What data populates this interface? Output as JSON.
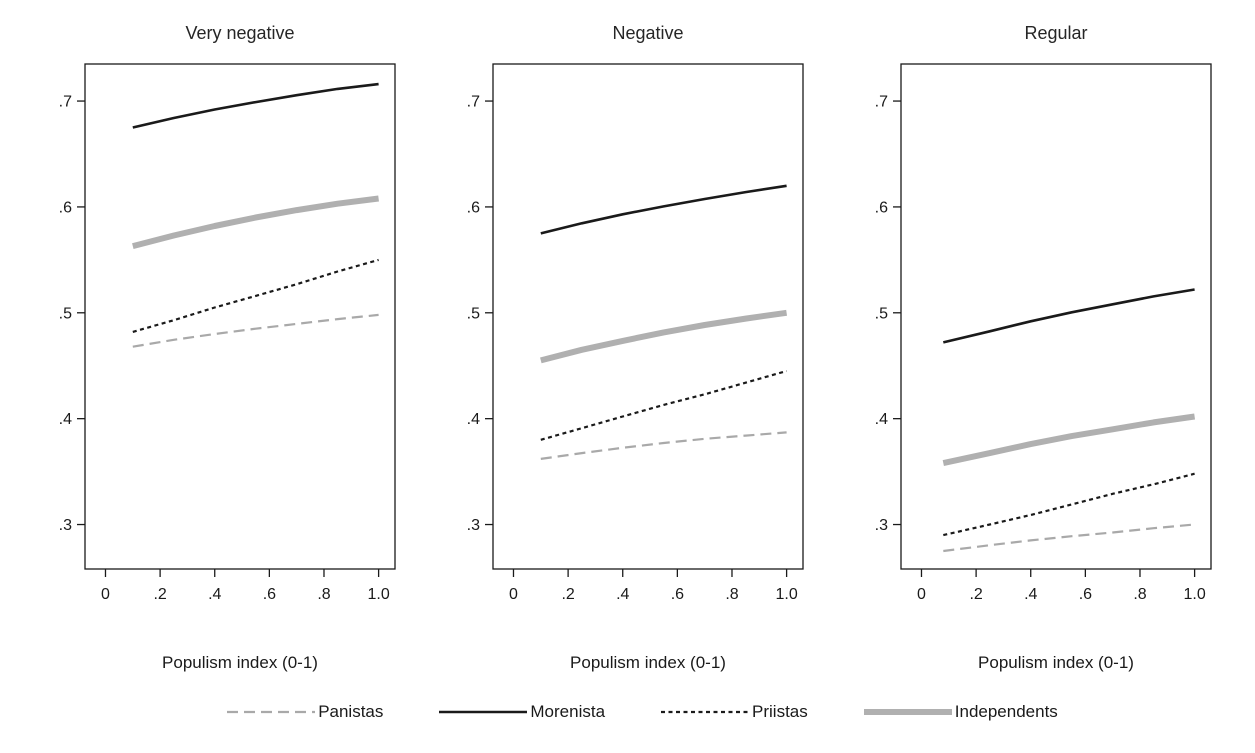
{
  "series_styles": {
    "Panistas": {
      "color": "#a9a9a9",
      "width": 2.2,
      "dash": "11,6"
    },
    "Morenista": {
      "color": "#1a1a1a",
      "width": 2.6,
      "dash": ""
    },
    "Priistas": {
      "color": "#1a1a1a",
      "width": 2.2,
      "dash": "4,3.5"
    },
    "Independents": {
      "color": "#b0b0b0",
      "width": 6,
      "dash": ""
    }
  },
  "legend": {
    "items": [
      {
        "label": "Panistas"
      },
      {
        "label": "Morenista"
      },
      {
        "label": "Priistas"
      },
      {
        "label": "Independents"
      }
    ]
  },
  "chart_data": [
    {
      "type": "line",
      "title": "Very negative",
      "xlabel": "Populism index (0-1)",
      "x_ticks": [
        "0",
        ".2",
        ".4",
        ".6",
        ".8",
        "1.0"
      ],
      "y_ticks": [
        ".3",
        ".4",
        ".5",
        ".6",
        ".7"
      ],
      "xlim": [
        -0.075,
        1.06
      ],
      "ylim": [
        0.258,
        0.735
      ],
      "grid": false,
      "series": [
        {
          "name": "Panistas",
          "x": [
            0.1,
            0.25,
            0.4,
            0.55,
            0.7,
            0.85,
            1.0
          ],
          "y": [
            0.468,
            0.4745,
            0.48,
            0.485,
            0.4895,
            0.494,
            0.498
          ]
        },
        {
          "name": "Morenista",
          "x": [
            0.1,
            0.25,
            0.4,
            0.55,
            0.7,
            0.85,
            1.0
          ],
          "y": [
            0.675,
            0.684,
            0.692,
            0.699,
            0.7055,
            0.7115,
            0.716
          ]
        },
        {
          "name": "Priistas",
          "x": [
            0.1,
            0.25,
            0.4,
            0.55,
            0.7,
            0.85,
            1.0
          ],
          "y": [
            0.482,
            0.493,
            0.505,
            0.516,
            0.527,
            0.539,
            0.55
          ]
        },
        {
          "name": "Independents",
          "x": [
            0.1,
            0.25,
            0.4,
            0.55,
            0.7,
            0.85,
            1.0
          ],
          "y": [
            0.563,
            0.573,
            0.582,
            0.59,
            0.597,
            0.603,
            0.608
          ]
        }
      ]
    },
    {
      "type": "line",
      "title": "Negative",
      "xlabel": "Populism index (0-1)",
      "x_ticks": [
        "0",
        ".2",
        ".4",
        ".6",
        ".8",
        "1.0"
      ],
      "y_ticks": [
        ".3",
        ".4",
        ".5",
        ".6",
        ".7"
      ],
      "xlim": [
        -0.075,
        1.06
      ],
      "ylim": [
        0.258,
        0.735
      ],
      "grid": false,
      "series": [
        {
          "name": "Panistas",
          "x": [
            0.1,
            0.25,
            0.4,
            0.55,
            0.7,
            0.85,
            1.0
          ],
          "y": [
            0.362,
            0.3675,
            0.3725,
            0.377,
            0.381,
            0.384,
            0.387
          ]
        },
        {
          "name": "Morenista",
          "x": [
            0.1,
            0.25,
            0.4,
            0.55,
            0.7,
            0.85,
            1.0
          ],
          "y": [
            0.575,
            0.5845,
            0.593,
            0.6005,
            0.6075,
            0.614,
            0.62
          ]
        },
        {
          "name": "Priistas",
          "x": [
            0.1,
            0.25,
            0.4,
            0.55,
            0.7,
            0.85,
            1.0
          ],
          "y": [
            0.38,
            0.391,
            0.402,
            0.413,
            0.423,
            0.434,
            0.445
          ]
        },
        {
          "name": "Independents",
          "x": [
            0.1,
            0.25,
            0.4,
            0.55,
            0.7,
            0.85,
            1.0
          ],
          "y": [
            0.455,
            0.465,
            0.4735,
            0.4815,
            0.4885,
            0.4945,
            0.5
          ]
        }
      ]
    },
    {
      "type": "line",
      "title": "Regular",
      "xlabel": "Populism index (0-1)",
      "x_ticks": [
        "0",
        ".2",
        ".4",
        ".6",
        ".8",
        "1.0"
      ],
      "y_ticks": [
        ".3",
        ".4",
        ".5",
        ".6",
        ".7"
      ],
      "xlim": [
        -0.075,
        1.06
      ],
      "ylim": [
        0.258,
        0.735
      ],
      "grid": false,
      "series": [
        {
          "name": "Panistas",
          "x": [
            0.08,
            0.25,
            0.4,
            0.55,
            0.7,
            0.85,
            1.0
          ],
          "y": [
            0.275,
            0.2805,
            0.285,
            0.289,
            0.2925,
            0.2965,
            0.3
          ]
        },
        {
          "name": "Morenista",
          "x": [
            0.08,
            0.25,
            0.4,
            0.55,
            0.7,
            0.85,
            1.0
          ],
          "y": [
            0.472,
            0.4825,
            0.492,
            0.5005,
            0.508,
            0.5155,
            0.522
          ]
        },
        {
          "name": "Priistas",
          "x": [
            0.08,
            0.25,
            0.4,
            0.55,
            0.7,
            0.85,
            1.0
          ],
          "y": [
            0.29,
            0.3,
            0.309,
            0.319,
            0.329,
            0.338,
            0.348
          ]
        },
        {
          "name": "Independents",
          "x": [
            0.08,
            0.25,
            0.4,
            0.55,
            0.7,
            0.85,
            1.0
          ],
          "y": [
            0.358,
            0.3675,
            0.376,
            0.3835,
            0.39,
            0.3965,
            0.402
          ]
        }
      ]
    }
  ]
}
